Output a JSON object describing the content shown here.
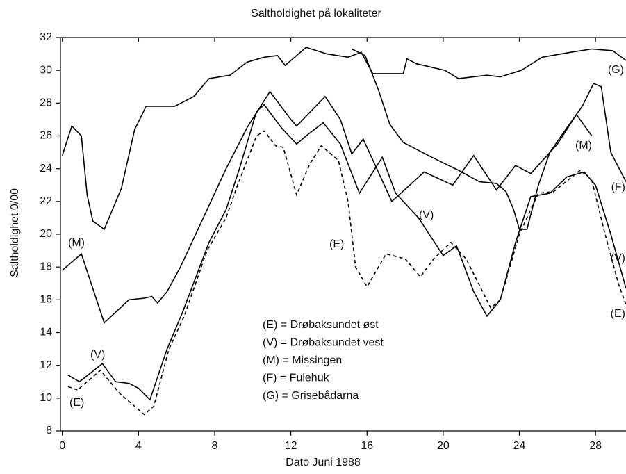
{
  "chart_data": {
    "type": "line",
    "title": "Saltholdighet på lokaliteter",
    "xlabel": "Dato Juni 1988",
    "ylabel": "Saltholdighet 0/00",
    "xlim": [
      -0.1,
      29.6
    ],
    "ylim": [
      8,
      32
    ],
    "xticks": [
      0,
      4,
      8,
      12,
      16,
      20,
      24,
      28
    ],
    "yticks": [
      8,
      10,
      12,
      14,
      16,
      18,
      20,
      22,
      24,
      26,
      28,
      30,
      32
    ],
    "series": [
      {
        "name": "(E) = Drøbaksundet øst",
        "color": "#000000",
        "dashed": true,
        "x": [
          0.3,
          0.8,
          2,
          3,
          3.6,
          4.3,
          4.8,
          5.6,
          6.4,
          7.6,
          8.6,
          9.2,
          10.2,
          10.6,
          11.2,
          11.6,
          12.3,
          13,
          13.6,
          14.5,
          15,
          15.4,
          16,
          17,
          18,
          18.8,
          19.5,
          20.4,
          21.2,
          22.5,
          23,
          24,
          25,
          25.8,
          27.2,
          27.8,
          28.5,
          29.2,
          29.6
        ],
        "values": [
          10.7,
          10.5,
          11.7,
          10.3,
          9.7,
          9,
          9.5,
          13,
          15,
          19,
          21,
          23,
          26,
          26.3,
          25.4,
          25.3,
          22.4,
          24.3,
          25.4,
          24.5,
          22,
          18,
          16.8,
          18.8,
          18.5,
          17.4,
          18.5,
          19.5,
          18.5,
          15.5,
          16,
          20,
          22.5,
          22.6,
          23.9,
          23.3,
          20,
          17,
          15.7
        ]
      },
      {
        "name": "(V) = Drøbaksundet vest",
        "color": "#000000",
        "dashed": false,
        "x": [
          0.3,
          0.9,
          2.1,
          2.8,
          3.5,
          4,
          4.6,
          5.5,
          6.3,
          7.7,
          8.6,
          9.3,
          10.2,
          10.6,
          11.5,
          12.3,
          12.8,
          13.7,
          14.6,
          15.6,
          16.8,
          17.5,
          18.7,
          20,
          20.7,
          21.6,
          22.3,
          23,
          23.8,
          24.6,
          25.6,
          26.5,
          27.4,
          28,
          28.8,
          29.6
        ],
        "values": [
          11.4,
          11,
          12.1,
          11,
          10.9,
          10.6,
          9.9,
          13,
          15.2,
          19.5,
          21.5,
          24,
          27.5,
          27.9,
          26.5,
          25.5,
          26,
          26.8,
          25.5,
          22.5,
          24.7,
          22.5,
          21,
          18.7,
          19.3,
          16.5,
          15,
          16,
          19.5,
          22.3,
          22.5,
          23.5,
          23.8,
          23,
          20,
          16.7
        ]
      },
      {
        "name": "(M) = Missingen",
        "color": "#000000",
        "dashed": false,
        "x": [
          0,
          1,
          2.2,
          3.5,
          4.3,
          4.7,
          5,
          5.5,
          6.2,
          7.4,
          8.6,
          9.7,
          10.9,
          12,
          12.3,
          13.8,
          14.6,
          15.2,
          15.8,
          17.3,
          19,
          20.5,
          21.6,
          22.8,
          23.8,
          24.6,
          26,
          27,
          27.8
        ],
        "values": [
          17.8,
          18.8,
          14.6,
          16,
          16.1,
          16.2,
          15.8,
          16.5,
          18,
          21,
          24,
          26.5,
          28.7,
          27,
          26.6,
          28.4,
          27,
          24.9,
          25.8,
          22,
          23.8,
          23,
          24.8,
          22.7,
          24.2,
          23.7,
          25.5,
          27.3,
          26
        ]
      },
      {
        "name": "(F) = Fulehuk",
        "color": "#000000",
        "dashed": false,
        "x": [
          15.2,
          15.9,
          16.6,
          17.2,
          17.9,
          19.4,
          20.8,
          21.9,
          22.8,
          23.3,
          23.7,
          24,
          24.4,
          25,
          25.6,
          26.5,
          27.3,
          27.9,
          28.3,
          28.8,
          29.6
        ],
        "values": [
          31.3,
          30.9,
          28.8,
          26.7,
          25.6,
          24.7,
          23.9,
          23.2,
          23.1,
          22.6,
          21.5,
          20.3,
          20.3,
          23,
          25,
          26.5,
          27.8,
          29.2,
          29,
          25,
          23.2
        ]
      },
      {
        "name": "(G) = Grisebådarna",
        "color": "#000000",
        "dashed": false,
        "x": [
          0,
          0.5,
          1,
          1.3,
          1.6,
          2.2,
          3.1,
          3.8,
          4.4,
          5.9,
          6.9,
          7.7,
          8.8,
          9.7,
          10.6,
          11.3,
          11.7,
          12.8,
          13.9,
          15,
          15.7,
          16.3,
          17.2,
          17.9,
          18.1,
          18.6,
          20.1,
          20.8,
          22.3,
          23,
          24.1,
          25.2,
          26.7,
          27.8,
          28.9,
          29.6
        ],
        "values": [
          24.8,
          26.6,
          26,
          22.4,
          20.8,
          20.3,
          22.8,
          26.4,
          27.8,
          27.8,
          28.4,
          29.5,
          29.7,
          30.5,
          30.8,
          30.9,
          30.3,
          31.4,
          31,
          30.8,
          31.1,
          29.8,
          29.8,
          29.8,
          30.7,
          30.4,
          30,
          29.5,
          29.7,
          29.6,
          30,
          30.8,
          31.1,
          31.3,
          31.2,
          30.6
        ]
      }
    ],
    "annotations": [
      "(G)",
      "(M)",
      "(F)",
      "(M)",
      "(V)",
      "(E)",
      "(V)",
      "(E)",
      "(V)",
      "(E)"
    ]
  }
}
